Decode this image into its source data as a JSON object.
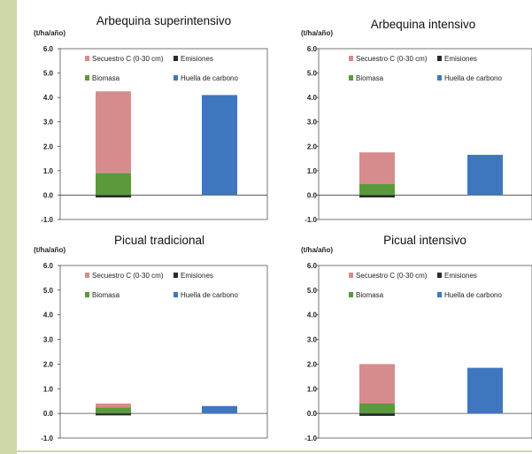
{
  "colors": {
    "background": "#ffffff",
    "accent_bar": "#cdd9a8",
    "secuestro": "#d68c8c",
    "biomasa": "#5a9a3c",
    "emisiones": "#2b2b2b",
    "huella": "#3e77c0",
    "plot_border": "#555555"
  },
  "chart_data": [
    {
      "type": "bar",
      "title": "Arbequina superintensivo",
      "ylabel": "(t/ha/año)",
      "ylim": [
        -1.0,
        6.0
      ],
      "yticks": [
        "-1.0",
        "0.0",
        "1.0",
        "2.0",
        "3.0",
        "4.0",
        "5.0",
        "6.0"
      ],
      "legend": [
        "Secuestro C (0-30 cm)",
        "Emisiones",
        "Biomasa",
        "Huella de carbono"
      ],
      "stacked": {
        "biomasa": 0.9,
        "secuestro": 3.35,
        "emisiones": -0.1
      },
      "huella": 4.1
    },
    {
      "type": "bar",
      "title": "Arbequina intensivo",
      "ylabel": "(t/ha/año)",
      "ylim": [
        -1.0,
        6.0
      ],
      "yticks": [
        "-1.0",
        "0.0",
        "1.0",
        "2.0",
        "3.0",
        "4.0",
        "5.0",
        "6.0"
      ],
      "legend": [
        "Secuestro C (0-30 cm)",
        "Emisiones",
        "Biomasa",
        "Huella de carbono"
      ],
      "stacked": {
        "biomasa": 0.45,
        "secuestro": 1.3,
        "emisiones": -0.1
      },
      "huella": 1.65
    },
    {
      "type": "bar",
      "title": "Picual tradicional",
      "ylabel": "(t/ha/año)",
      "ylim": [
        -1.0,
        6.0
      ],
      "yticks": [
        "-1.0",
        "0.0",
        "1.0",
        "2.0",
        "3.0",
        "4.0",
        "5.0",
        "6.0"
      ],
      "legend": [
        "Secuestro C (0-30 cm)",
        "Emisiones",
        "Biomasa",
        "Huella de carbono"
      ],
      "stacked": {
        "biomasa": 0.25,
        "secuestro": 0.15,
        "emisiones": -0.08
      },
      "huella": 0.3
    },
    {
      "type": "bar",
      "title": "Picual intensivo",
      "ylabel": "(t/ha/año)",
      "ylim": [
        -1.0,
        6.0
      ],
      "yticks": [
        "-1.0",
        "0.0",
        "1.0",
        "2.0",
        "3.0",
        "4.0",
        "5.0",
        "6.0"
      ],
      "legend": [
        "Secuestro C (0-30 cm)",
        "Emisiones",
        "Biomasa",
        "Huella de carbono"
      ],
      "stacked": {
        "biomasa": 0.4,
        "secuestro": 1.6,
        "emisiones": -0.1
      },
      "huella": 1.85
    }
  ]
}
